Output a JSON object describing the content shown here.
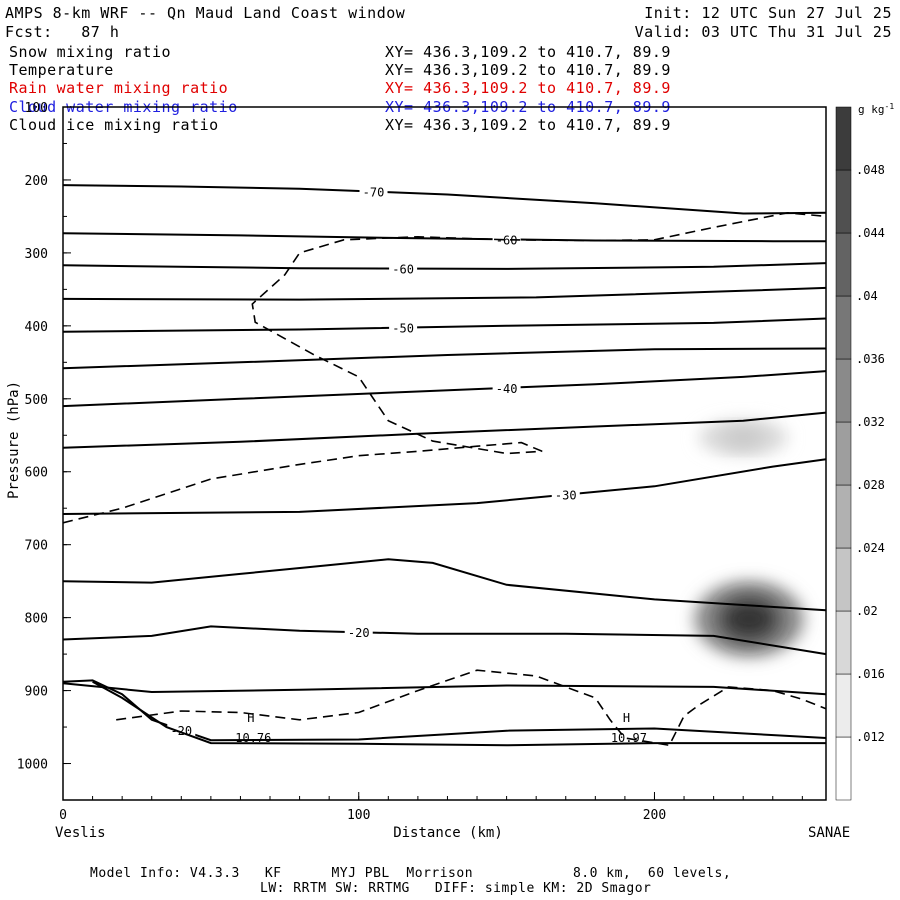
{
  "header": {
    "title": "AMPS 8-km WRF -- Qn Maud Land Coast window",
    "init": "Init: 12 UTC Sun 27 Jul 25",
    "fcst": "Fcst:   87 h",
    "valid": "Valid: 03 UTC Thu 31 Jul 25"
  },
  "fields": [
    {
      "name": "Snow mixing ratio",
      "xy": "XY= 436.3,109.2 to 410.7, 89.9",
      "color": "#000000"
    },
    {
      "name": "Temperature",
      "xy": "XY= 436.3,109.2 to 410.7, 89.9",
      "color": "#000000"
    },
    {
      "name": "Rain water mixing ratio",
      "xy": "XY= 436.3,109.2 to 410.7, 89.9",
      "color": "#e00000"
    },
    {
      "name": "Cloud water mixing ratio",
      "xy": "XY= 436.3,109.2 to 410.7, 89.9",
      "color": "#2020e0"
    },
    {
      "name": "Cloud ice mixing ratio",
      "xy": "XY= 436.3,109.2 to 410.7, 89.9",
      "color": "#000000"
    }
  ],
  "footer": {
    "line1": "Model Info: V4.3.3   KF      MYJ PBL  Morrison            8.0 km,  60 levels,",
    "line2": "LW: RRTM SW: RRTMG   DIFF: simple KM: 2D Smagor"
  },
  "chart_data": {
    "type": "cross-section",
    "xlabel": "Distance (km)",
    "ylabel": "Pressure (hPa)",
    "x_left_label": "Veslis",
    "x_right_label": "SANAE",
    "xlim": [
      0,
      258
    ],
    "ylim": [
      1050,
      100
    ],
    "x_ticks": [
      0,
      100,
      200
    ],
    "y_ticks": [
      100,
      200,
      300,
      400,
      500,
      600,
      700,
      800,
      900,
      1000
    ],
    "colorbar": {
      "unit": "g kg",
      "unit_exp": "-1",
      "levels": [
        0.008,
        0.012,
        0.016,
        0.02,
        0.024,
        0.028,
        0.032,
        0.036,
        0.04,
        0.044,
        0.048,
        0.052
      ],
      "tick_labels": [
        ".012",
        ".016",
        ".02",
        ".024",
        ".028",
        ".032",
        ".036",
        ".04",
        ".044",
        ".048"
      ]
    },
    "snow_maxima": [
      {
        "x": 232,
        "p": 802,
        "value": 0.05
      },
      {
        "x": 230,
        "p": 553,
        "value": 0.013
      }
    ],
    "temperature_contours": [
      {
        "label": "-70",
        "x": [
          0,
          40,
          80,
          130,
          180,
          230,
          258
        ],
        "p": [
          207,
          209,
          212,
          220,
          232,
          246,
          245
        ]
      },
      {
        "label": "-60",
        "x": [
          0,
          60,
          120,
          180,
          240,
          258
        ],
        "p": [
          273,
          276,
          280,
          283,
          284,
          284
        ]
      },
      {
        "label": "-60",
        "x": [
          0,
          80,
          150,
          220,
          258
        ],
        "p": [
          317,
          321,
          322,
          319,
          314
        ]
      },
      {
        "label": "",
        "x": [
          0,
          80,
          160,
          230,
          258
        ],
        "p": [
          363,
          364,
          361,
          352,
          348
        ]
      },
      {
        "label": "-50",
        "x": [
          0,
          80,
          150,
          220,
          258
        ],
        "p": [
          408,
          405,
          400,
          396,
          390
        ]
      },
      {
        "label": "",
        "x": [
          0,
          60,
          130,
          200,
          258
        ],
        "p": [
          458,
          450,
          440,
          432,
          431
        ]
      },
      {
        "label": "-40",
        "x": [
          0,
          60,
          120,
          180,
          230,
          258
        ],
        "p": [
          510,
          500,
          490,
          480,
          470,
          462
        ]
      },
      {
        "label": "",
        "x": [
          0,
          60,
          120,
          180,
          230,
          258
        ],
        "p": [
          567,
          559,
          548,
          538,
          530,
          519
        ]
      },
      {
        "label": "-30",
        "x": [
          0,
          80,
          140,
          200,
          240,
          258
        ],
        "p": [
          658,
          655,
          643,
          620,
          593,
          583
        ]
      },
      {
        "label": "",
        "x": [
          0,
          30,
          60,
          90,
          110,
          125,
          150,
          200,
          258
        ],
        "p": [
          750,
          752,
          740,
          728,
          720,
          725,
          755,
          775,
          790
        ]
      },
      {
        "label": "-20",
        "x": [
          0,
          30,
          50,
          80,
          120,
          170,
          220,
          258
        ],
        "p": [
          830,
          825,
          812,
          818,
          822,
          822,
          825,
          850
        ]
      },
      {
        "label": "-20",
        "x": [
          0,
          10,
          20,
          30,
          50,
          100,
          150,
          200,
          258
        ],
        "p": [
          888,
          886,
          905,
          940,
          968,
          967,
          955,
          952,
          965
        ]
      },
      {
        "label": "",
        "x": [
          0,
          30,
          80,
          150,
          220,
          258
        ],
        "p": [
          890,
          902,
          899,
          893,
          895,
          905
        ]
      },
      {
        "label": "",
        "x": [
          10,
          20,
          35,
          50,
          100,
          150,
          200,
          258
        ],
        "p": [
          888,
          910,
          950,
          972,
          973,
          975,
          972,
          972
        ]
      }
    ],
    "cloud_ice_contour": {
      "x": [
        0,
        20,
        50,
        80,
        100,
        120,
        140,
        155,
        162,
        150,
        125,
        110,
        100,
        85,
        65,
        64,
        75,
        80,
        95,
        120,
        150,
        180,
        200,
        220,
        245,
        258
      ],
      "p": [
        670,
        650,
        610,
        590,
        578,
        572,
        565,
        560,
        572,
        575,
        558,
        530,
        470,
        440,
        395,
        370,
        330,
        300,
        282,
        278,
        282,
        283,
        282,
        265,
        245,
        250
      ]
    },
    "warm_contour": {
      "x": [
        18,
        40,
        60,
        80,
        100,
        120,
        140,
        160,
        180,
        185,
        190,
        205,
        210,
        215,
        225,
        240,
        250,
        258
      ],
      "p": [
        940,
        928,
        930,
        940,
        930,
        900,
        872,
        880,
        910,
        940,
        965,
        975,
        935,
        920,
        895,
        900,
        912,
        925
      ]
    },
    "highs": [
      {
        "letter": "H",
        "value": "10.76",
        "x": 65,
        "p": 962
      },
      {
        "letter": "H",
        "value": "10.97",
        "x": 192,
        "p": 962
      }
    ]
  }
}
